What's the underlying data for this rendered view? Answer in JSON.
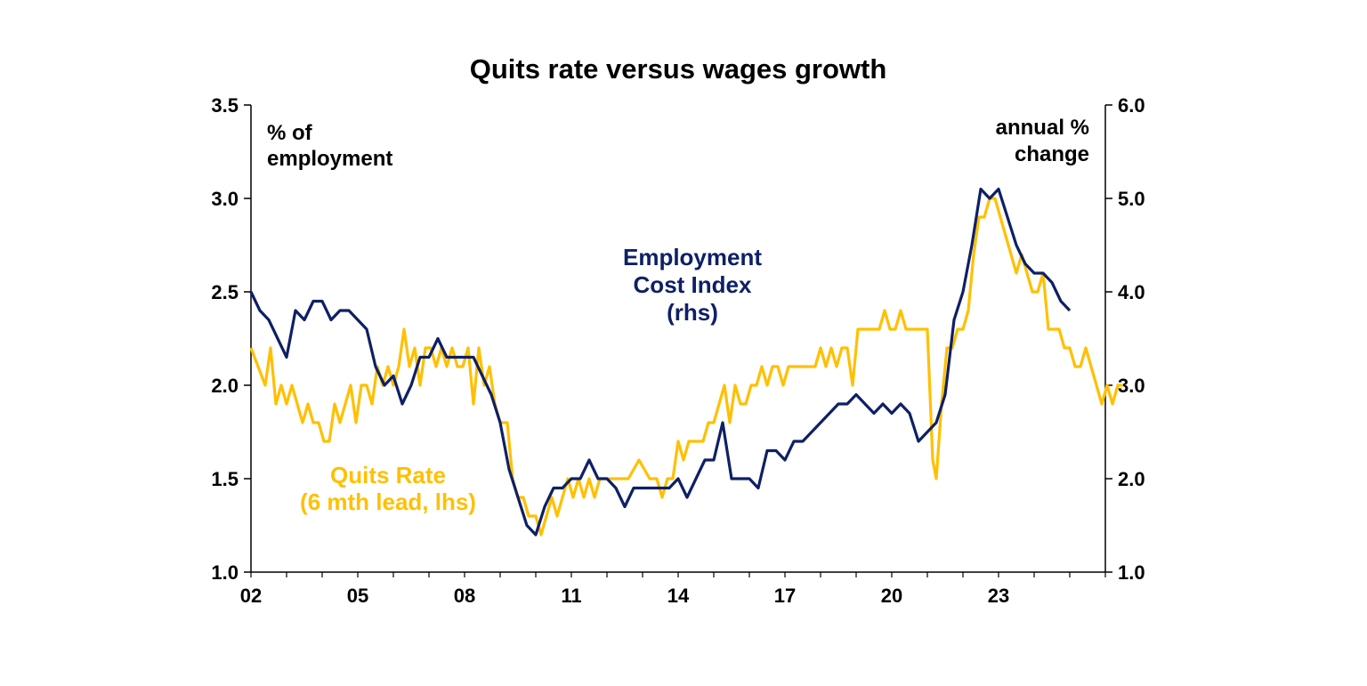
{
  "chart_data": {
    "type": "line",
    "title": "Quits rate versus wages growth",
    "left_axis_unit": [
      "% of",
      "employment"
    ],
    "right_axis_unit": [
      "annual %",
      "change"
    ],
    "left_axis": {
      "min": 1.0,
      "max": 3.5,
      "ticks": [
        "1.0",
        "1.5",
        "2.0",
        "2.5",
        "3.0",
        "3.5"
      ],
      "tick_values": [
        1.0,
        1.5,
        2.0,
        2.5,
        3.0,
        3.5
      ]
    },
    "right_axis": {
      "min": 1.0,
      "max": 6.0,
      "ticks": [
        "1.0",
        "2.0",
        "3.0",
        "4.0",
        "5.0",
        "6.0"
      ],
      "tick_values": [
        1.0,
        2.0,
        3.0,
        4.0,
        5.0,
        6.0
      ]
    },
    "x_axis": {
      "min": 2002,
      "max": 2026,
      "ticks": [
        "02",
        "05",
        "08",
        "11",
        "14",
        "17",
        "20",
        "23"
      ],
      "tick_values": [
        2002,
        2005,
        2008,
        2011,
        2014,
        2017,
        2020,
        2023
      ]
    },
    "series": [
      {
        "name": "Quits Rate (6 mth lead, lhs)",
        "label_lines": [
          "Quits Rate",
          "(6 mth lead, lhs)"
        ],
        "axis": "left",
        "color": "#FFC000",
        "points": [
          [
            2002.0,
            2.2
          ],
          [
            2002.2,
            2.1
          ],
          [
            2002.4,
            2.0
          ],
          [
            2002.55,
            2.2
          ],
          [
            2002.7,
            1.9
          ],
          [
            2002.85,
            2.0
          ],
          [
            2003.0,
            1.9
          ],
          [
            2003.15,
            2.0
          ],
          [
            2003.3,
            1.9
          ],
          [
            2003.45,
            1.8
          ],
          [
            2003.6,
            1.9
          ],
          [
            2003.75,
            1.8
          ],
          [
            2003.9,
            1.8
          ],
          [
            2004.05,
            1.7
          ],
          [
            2004.2,
            1.7
          ],
          [
            2004.35,
            1.9
          ],
          [
            2004.5,
            1.8
          ],
          [
            2004.65,
            1.9
          ],
          [
            2004.8,
            2.0
          ],
          [
            2004.95,
            1.8
          ],
          [
            2005.1,
            2.0
          ],
          [
            2005.25,
            2.0
          ],
          [
            2005.4,
            1.9
          ],
          [
            2005.55,
            2.1
          ],
          [
            2005.7,
            2.0
          ],
          [
            2005.85,
            2.1
          ],
          [
            2006.0,
            2.0
          ],
          [
            2006.15,
            2.1
          ],
          [
            2006.3,
            2.3
          ],
          [
            2006.45,
            2.1
          ],
          [
            2006.6,
            2.2
          ],
          [
            2006.75,
            2.0
          ],
          [
            2006.9,
            2.2
          ],
          [
            2007.05,
            2.2
          ],
          [
            2007.2,
            2.1
          ],
          [
            2007.35,
            2.2
          ],
          [
            2007.5,
            2.1
          ],
          [
            2007.65,
            2.2
          ],
          [
            2007.8,
            2.1
          ],
          [
            2007.95,
            2.1
          ],
          [
            2008.1,
            2.2
          ],
          [
            2008.25,
            1.9
          ],
          [
            2008.4,
            2.2
          ],
          [
            2008.55,
            2.0
          ],
          [
            2008.7,
            2.1
          ],
          [
            2008.85,
            1.9
          ],
          [
            2009.0,
            1.8
          ],
          [
            2009.2,
            1.8
          ],
          [
            2009.35,
            1.5
          ],
          [
            2009.5,
            1.4
          ],
          [
            2009.65,
            1.4
          ],
          [
            2009.8,
            1.3
          ],
          [
            2010.0,
            1.3
          ],
          [
            2010.15,
            1.2
          ],
          [
            2010.3,
            1.3
          ],
          [
            2010.45,
            1.4
          ],
          [
            2010.6,
            1.3
          ],
          [
            2010.75,
            1.4
          ],
          [
            2010.9,
            1.5
          ],
          [
            2011.05,
            1.4
          ],
          [
            2011.2,
            1.5
          ],
          [
            2011.35,
            1.4
          ],
          [
            2011.5,
            1.5
          ],
          [
            2011.65,
            1.4
          ],
          [
            2011.8,
            1.5
          ],
          [
            2012.0,
            1.5
          ],
          [
            2012.3,
            1.5
          ],
          [
            2012.6,
            1.5
          ],
          [
            2012.9,
            1.6
          ],
          [
            2013.2,
            1.5
          ],
          [
            2013.4,
            1.5
          ],
          [
            2013.55,
            1.4
          ],
          [
            2013.7,
            1.5
          ],
          [
            2013.85,
            1.5
          ],
          [
            2014.0,
            1.7
          ],
          [
            2014.15,
            1.6
          ],
          [
            2014.3,
            1.7
          ],
          [
            2014.5,
            1.7
          ],
          [
            2014.7,
            1.7
          ],
          [
            2014.85,
            1.8
          ],
          [
            2015.0,
            1.8
          ],
          [
            2015.15,
            1.9
          ],
          [
            2015.3,
            2.0
          ],
          [
            2015.45,
            1.8
          ],
          [
            2015.6,
            2.0
          ],
          [
            2015.75,
            1.9
          ],
          [
            2015.9,
            1.9
          ],
          [
            2016.05,
            2.0
          ],
          [
            2016.2,
            2.0
          ],
          [
            2016.35,
            2.1
          ],
          [
            2016.5,
            2.0
          ],
          [
            2016.65,
            2.1
          ],
          [
            2016.8,
            2.1
          ],
          [
            2016.95,
            2.0
          ],
          [
            2017.1,
            2.1
          ],
          [
            2017.3,
            2.1
          ],
          [
            2017.5,
            2.1
          ],
          [
            2017.7,
            2.1
          ],
          [
            2017.85,
            2.1
          ],
          [
            2018.0,
            2.2
          ],
          [
            2018.15,
            2.1
          ],
          [
            2018.3,
            2.2
          ],
          [
            2018.45,
            2.1
          ],
          [
            2018.6,
            2.2
          ],
          [
            2018.75,
            2.2
          ],
          [
            2018.9,
            2.0
          ],
          [
            2019.05,
            2.3
          ],
          [
            2019.2,
            2.3
          ],
          [
            2019.35,
            2.3
          ],
          [
            2019.5,
            2.3
          ],
          [
            2019.65,
            2.3
          ],
          [
            2019.8,
            2.4
          ],
          [
            2019.95,
            2.3
          ],
          [
            2020.1,
            2.3
          ],
          [
            2020.25,
            2.4
          ],
          [
            2020.4,
            2.3
          ],
          [
            2020.55,
            2.3
          ],
          [
            2020.7,
            2.3
          ],
          [
            2020.85,
            2.3
          ],
          [
            2021.0,
            2.3
          ],
          [
            2021.15,
            1.6
          ],
          [
            2021.25,
            1.5
          ],
          [
            2021.4,
            1.9
          ],
          [
            2021.55,
            2.2
          ],
          [
            2021.7,
            2.2
          ],
          [
            2021.85,
            2.3
          ],
          [
            2022.0,
            2.3
          ],
          [
            2022.15,
            2.4
          ],
          [
            2022.3,
            2.7
          ],
          [
            2022.45,
            2.9
          ],
          [
            2022.6,
            2.9
          ],
          [
            2022.75,
            3.0
          ],
          [
            2022.9,
            3.0
          ],
          [
            2023.05,
            2.9
          ],
          [
            2023.2,
            2.8
          ],
          [
            2023.35,
            2.7
          ],
          [
            2023.5,
            2.6
          ],
          [
            2023.65,
            2.7
          ],
          [
            2023.8,
            2.6
          ],
          [
            2023.95,
            2.5
          ],
          [
            2024.1,
            2.5
          ],
          [
            2024.25,
            2.6
          ],
          [
            2024.4,
            2.3
          ],
          [
            2024.55,
            2.3
          ],
          [
            2024.7,
            2.3
          ],
          [
            2024.85,
            2.2
          ],
          [
            2025.0,
            2.2
          ],
          [
            2025.15,
            2.1
          ],
          [
            2025.3,
            2.1
          ],
          [
            2025.45,
            2.2
          ],
          [
            2025.6,
            2.1
          ],
          [
            2025.75,
            2.0
          ],
          [
            2025.9,
            1.9
          ],
          [
            2026.05,
            2.0
          ],
          [
            2026.2,
            1.9
          ],
          [
            2026.35,
            2.0
          ],
          [
            2026.5,
            2.0
          ]
        ]
      },
      {
        "name": "Employment Cost Index (rhs)",
        "label_lines": [
          "Employment",
          "Cost Index",
          "(rhs)"
        ],
        "axis": "right",
        "color": "#0E2065",
        "points": [
          [
            2002.0,
            4.0
          ],
          [
            2002.25,
            3.8
          ],
          [
            2002.5,
            3.7
          ],
          [
            2002.75,
            3.5
          ],
          [
            2003.0,
            3.3
          ],
          [
            2003.25,
            3.8
          ],
          [
            2003.5,
            3.7
          ],
          [
            2003.75,
            3.9
          ],
          [
            2004.0,
            3.9
          ],
          [
            2004.25,
            3.7
          ],
          [
            2004.5,
            3.8
          ],
          [
            2004.75,
            3.8
          ],
          [
            2005.0,
            3.7
          ],
          [
            2005.25,
            3.6
          ],
          [
            2005.5,
            3.2
          ],
          [
            2005.75,
            3.0
          ],
          [
            2006.0,
            3.1
          ],
          [
            2006.25,
            2.8
          ],
          [
            2006.5,
            3.0
          ],
          [
            2006.75,
            3.3
          ],
          [
            2007.0,
            3.3
          ],
          [
            2007.25,
            3.5
          ],
          [
            2007.5,
            3.3
          ],
          [
            2007.75,
            3.3
          ],
          [
            2008.0,
            3.3
          ],
          [
            2008.25,
            3.3
          ],
          [
            2008.5,
            3.1
          ],
          [
            2008.75,
            2.9
          ],
          [
            2009.0,
            2.6
          ],
          [
            2009.25,
            2.1
          ],
          [
            2009.5,
            1.8
          ],
          [
            2009.75,
            1.5
          ],
          [
            2010.0,
            1.4
          ],
          [
            2010.25,
            1.7
          ],
          [
            2010.5,
            1.9
          ],
          [
            2010.75,
            1.9
          ],
          [
            2011.0,
            2.0
          ],
          [
            2011.25,
            2.0
          ],
          [
            2011.5,
            2.2
          ],
          [
            2011.75,
            2.0
          ],
          [
            2012.0,
            2.0
          ],
          [
            2012.25,
            1.9
          ],
          [
            2012.5,
            1.7
          ],
          [
            2012.75,
            1.9
          ],
          [
            2013.0,
            1.9
          ],
          [
            2013.25,
            1.9
          ],
          [
            2013.5,
            1.9
          ],
          [
            2013.75,
            1.9
          ],
          [
            2014.0,
            2.0
          ],
          [
            2014.25,
            1.8
          ],
          [
            2014.5,
            2.0
          ],
          [
            2014.75,
            2.2
          ],
          [
            2015.0,
            2.2
          ],
          [
            2015.25,
            2.6
          ],
          [
            2015.5,
            2.0
          ],
          [
            2015.75,
            2.0
          ],
          [
            2016.0,
            2.0
          ],
          [
            2016.25,
            1.9
          ],
          [
            2016.5,
            2.3
          ],
          [
            2016.75,
            2.3
          ],
          [
            2017.0,
            2.2
          ],
          [
            2017.25,
            2.4
          ],
          [
            2017.5,
            2.4
          ],
          [
            2017.75,
            2.5
          ],
          [
            2018.0,
            2.6
          ],
          [
            2018.25,
            2.7
          ],
          [
            2018.5,
            2.8
          ],
          [
            2018.75,
            2.8
          ],
          [
            2019.0,
            2.9
          ],
          [
            2019.25,
            2.8
          ],
          [
            2019.5,
            2.7
          ],
          [
            2019.75,
            2.8
          ],
          [
            2020.0,
            2.7
          ],
          [
            2020.25,
            2.8
          ],
          [
            2020.5,
            2.7
          ],
          [
            2020.75,
            2.4
          ],
          [
            2021.0,
            2.5
          ],
          [
            2021.25,
            2.6
          ],
          [
            2021.5,
            2.9
          ],
          [
            2021.75,
            3.7
          ],
          [
            2022.0,
            4.0
          ],
          [
            2022.25,
            4.5
          ],
          [
            2022.5,
            5.1
          ],
          [
            2022.75,
            5.0
          ],
          [
            2023.0,
            5.1
          ],
          [
            2023.25,
            4.8
          ],
          [
            2023.5,
            4.5
          ],
          [
            2023.75,
            4.3
          ],
          [
            2024.0,
            4.2
          ],
          [
            2024.25,
            4.2
          ],
          [
            2024.5,
            4.1
          ],
          [
            2024.75,
            3.9
          ],
          [
            2025.0,
            3.8
          ]
        ]
      }
    ],
    "legend": "inline labels"
  }
}
